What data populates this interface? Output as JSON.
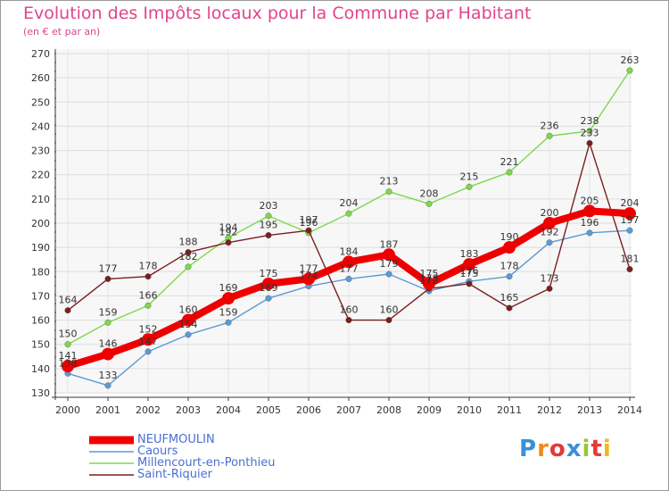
{
  "header": {
    "title": "Evolution des Impôts locaux pour la Commune par Habitant",
    "subtitle": "(en € et par an)"
  },
  "logo": {
    "text": "Proxiti"
  },
  "chart_data": {
    "type": "line",
    "title": "Evolution des Impôts locaux pour la Commune par Habitant",
    "subtitle": "(en € et par an)",
    "xlabel": "",
    "ylabel": "",
    "x": [
      2000,
      2001,
      2002,
      2003,
      2004,
      2005,
      2006,
      2007,
      2008,
      2009,
      2010,
      2011,
      2012,
      2013,
      2014
    ],
    "ylim": [
      130,
      270
    ],
    "yticks": [
      130,
      140,
      150,
      160,
      170,
      180,
      190,
      200,
      210,
      220,
      230,
      240,
      250,
      260,
      270
    ],
    "grid": true,
    "legend_position": "bottom-left",
    "series": [
      {
        "name": "NEUFMOULIN",
        "color": "#ee0000",
        "width": 8,
        "dot": 7,
        "values": [
          141,
          146,
          152,
          160,
          169,
          175,
          177,
          184,
          187,
          175,
          183,
          190,
          200,
          205,
          204
        ]
      },
      {
        "name": "Caours",
        "color": "#5b9bd5",
        "width": 1.4,
        "dot": 3.3,
        "values": [
          138,
          133,
          147,
          154,
          159,
          169,
          174,
          177,
          179,
          172,
          176,
          178,
          192,
          196,
          197
        ]
      },
      {
        "name": "Millencourt-en-Ponthieu",
        "color": "#7ed84a",
        "width": 1.4,
        "dot": 3.3,
        "values": [
          150,
          159,
          166,
          182,
          194,
          203,
          196,
          204,
          213,
          208,
          215,
          221,
          236,
          238,
          263
        ]
      },
      {
        "name": "Saint-Riquier",
        "color": "#7a1f1f",
        "width": 1.4,
        "dot": 3.3,
        "values": [
          164,
          177,
          178,
          188,
          192,
          195,
          197,
          160,
          160,
          173,
          175,
          165,
          173,
          233,
          181
        ]
      }
    ]
  }
}
